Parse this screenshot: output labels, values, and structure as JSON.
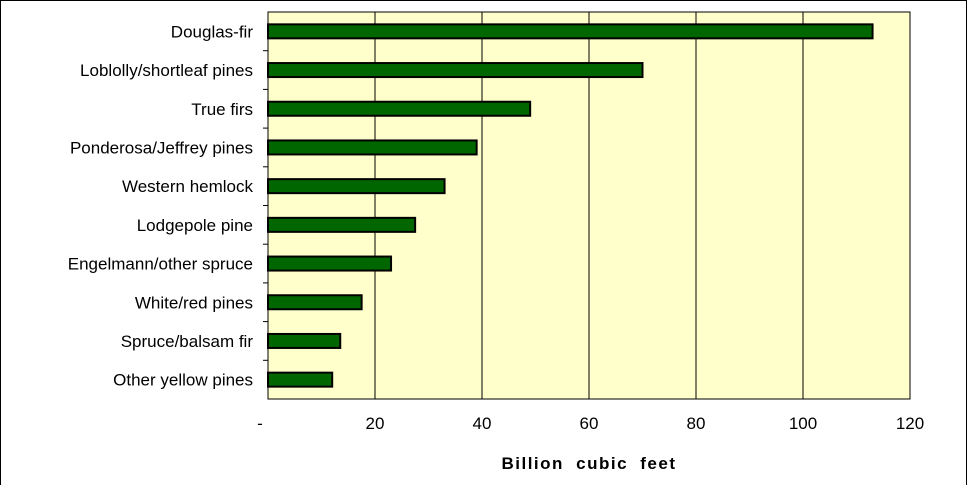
{
  "colors": {
    "plot_background": "#ffffcc",
    "bar_fill": "#006600",
    "bar_stroke": "#000000",
    "gridline": "#000000"
  },
  "chart_data": {
    "type": "bar",
    "orientation": "horizontal",
    "categories": [
      "Douglas-fir",
      "Loblolly/shortleaf pines",
      "True firs",
      "Ponderosa/Jeffrey pines",
      "Western hemlock",
      "Lodgepole pine",
      "Engelmann/other spruce",
      "White/red pines",
      "Spruce/balsam fir",
      "Other yellow pines"
    ],
    "values": [
      113,
      70,
      49,
      39,
      33,
      27.5,
      23,
      17.5,
      13.5,
      12
    ],
    "title": "",
    "xlabel": "Billion  cubic  feet",
    "ylabel": "",
    "xlim": [
      0,
      120
    ],
    "x_ticks": [
      0,
      20,
      40,
      60,
      80,
      100,
      120
    ],
    "x_tick_labels": [
      "-",
      "20",
      "40",
      "60",
      "80",
      "100",
      "120"
    ],
    "grid": "vertical gridlines on",
    "legend": "none"
  }
}
